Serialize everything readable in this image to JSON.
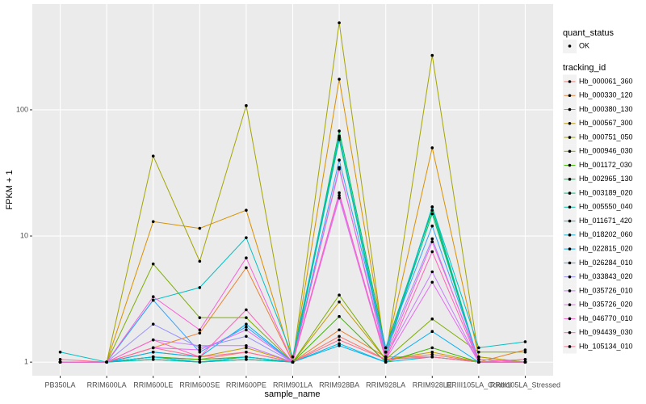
{
  "chart_data": {
    "type": "line",
    "y_label": "FPKM + 1",
    "x_label": "sample_name",
    "categories": [
      "PB350LA",
      "RRIM600LA",
      "RRIM600LE",
      "RRIM600SE",
      "RRIM600PE",
      "RRIM901LA",
      "RRIM928BA",
      "RRIM928LA",
      "RRIM928LE",
      "RRIII105LA_Control",
      "RRIII105LA_Stressed"
    ],
    "log_y": true,
    "ylim": [
      0.78,
      690
    ],
    "yticks": [
      1,
      10,
      100
    ],
    "grid": true,
    "point_color": "#000000",
    "shape_legend": {
      "title": "quant_status",
      "labels": [
        "OK"
      ]
    },
    "color_legend_title": "tracking_id",
    "series": [
      {
        "name": "Hb_000061_360",
        "color": "#F8766D",
        "values": [
          1,
          1,
          1.1,
          1.05,
          1.2,
          1,
          1.6,
          1.05,
          1.15,
          1,
          1
        ]
      },
      {
        "name": "Hb_000330_120",
        "color": "#EA8331",
        "values": [
          1,
          1,
          1.3,
          1.7,
          5.6,
          1,
          1.8,
          1.1,
          1.1,
          1,
          1.25
        ]
      },
      {
        "name": "Hb_000380_130",
        "color": "#D89000",
        "values": [
          1,
          1,
          13,
          11.5,
          16,
          1,
          175,
          1.2,
          50,
          1.1,
          1
        ]
      },
      {
        "name": "Hb_000567_300",
        "color": "#C09B00",
        "values": [
          1,
          1,
          1.2,
          1.1,
          1.3,
          1,
          3.0,
          1.05,
          1.2,
          1,
          1.05
        ]
      },
      {
        "name": "Hb_000751_050",
        "color": "#A3A500",
        "values": [
          1,
          1,
          43,
          6.3,
          108,
          1,
          490,
          1.1,
          270,
          1.1,
          1
        ]
      },
      {
        "name": "Hb_000946_030",
        "color": "#7CAE00",
        "values": [
          1,
          1,
          6,
          2.25,
          2.25,
          1,
          3.4,
          1.05,
          2.2,
          1.2,
          1.2
        ]
      },
      {
        "name": "Hb_001172_030",
        "color": "#39B600",
        "values": [
          1,
          1,
          1.1,
          1.05,
          1.1,
          1,
          2.3,
          1,
          1.3,
          1,
          1
        ]
      },
      {
        "name": "Hb_002965_130",
        "color": "#00BB4E",
        "values": [
          1,
          1,
          1.05,
          1,
          1.05,
          1,
          68,
          1.3,
          16,
          1,
          1
        ]
      },
      {
        "name": "Hb_003189_020",
        "color": "#00BF7D",
        "values": [
          1,
          1,
          1.1,
          1,
          1.1,
          1,
          58,
          1.2,
          15,
          1,
          1
        ]
      },
      {
        "name": "Hb_005550_040",
        "color": "#00C1A3",
        "values": [
          1,
          1,
          1.05,
          1,
          1.05,
          1,
          60,
          1.1,
          17,
          1,
          1
        ]
      },
      {
        "name": "Hb_011671_420",
        "color": "#00BFC4",
        "values": [
          1.2,
          1,
          3.1,
          3.9,
          9.7,
          1.1,
          62,
          1.2,
          17,
          1.3,
          1.45
        ]
      },
      {
        "name": "Hb_018202_060",
        "color": "#00BAE0",
        "values": [
          1,
          1,
          1.1,
          1,
          1.1,
          1,
          1.4,
          1,
          1.1,
          1,
          1
        ]
      },
      {
        "name": "Hb_022815_020",
        "color": "#00B0F6",
        "values": [
          1,
          1,
          1.2,
          1.1,
          2.0,
          1,
          1.35,
          1,
          1.75,
          1,
          1
        ]
      },
      {
        "name": "Hb_026284_010",
        "color": "#35A2FF",
        "values": [
          1,
          1,
          3.1,
          1.2,
          1.9,
          1,
          40,
          1.3,
          12,
          1.05,
          1
        ]
      },
      {
        "name": "Hb_033843_020",
        "color": "#9590FF",
        "values": [
          1,
          1,
          2.0,
          1.3,
          1.6,
          1,
          34,
          1.2,
          9.5,
          1,
          1
        ]
      },
      {
        "name": "Hb_035726_010",
        "color": "#C77CFF",
        "values": [
          1,
          1,
          1.5,
          1.35,
          1.35,
          1,
          21,
          1.1,
          5.2,
          1,
          1
        ]
      },
      {
        "name": "Hb_035726_020",
        "color": "#E76BF3",
        "values": [
          1,
          1,
          1.3,
          1.25,
          1.8,
          1,
          20,
          1.05,
          4.3,
          1,
          1
        ]
      },
      {
        "name": "Hb_046770_010",
        "color": "#FA62DB",
        "values": [
          1,
          1,
          3.3,
          1.8,
          6.7,
          1,
          35,
          1.1,
          9,
          1.05,
          1
        ]
      },
      {
        "name": "Hb_094439_030",
        "color": "#FF62BC",
        "values": [
          1,
          1,
          1.5,
          1.1,
          2.6,
          1,
          22,
          1.05,
          7.5,
          1,
          1.05
        ]
      },
      {
        "name": "Hb_105134_010",
        "color": "#FF6C91",
        "values": [
          1.05,
          1,
          1.3,
          1.1,
          1.2,
          1,
          1.5,
          1.05,
          1.1,
          1,
          1
        ]
      }
    ]
  }
}
